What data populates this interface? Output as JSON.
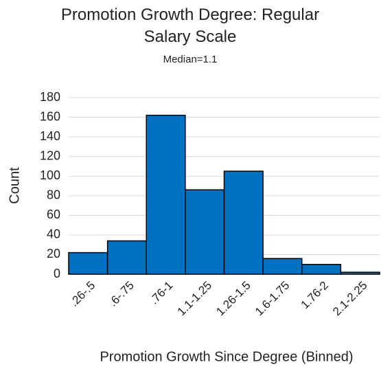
{
  "chart_data": {
    "type": "bar",
    "title": "Promotion Growth Degree: Regular Salary Scale",
    "subtitle": "Median=1.1",
    "x_label": "Promotion Growth Since Degree (Binned)",
    "y_label": "Count",
    "categories": [
      ".26-.5",
      ".6-.75",
      ".76-1",
      "1.1-1.25",
      "1.26-1.5",
      "1.6-1.75",
      "1.76-2",
      "2.1-2.25"
    ],
    "values": [
      22,
      34,
      162,
      86,
      105,
      16,
      10,
      2
    ],
    "color": "#0070c0",
    "ylim": [
      0,
      180
    ],
    "yticks": [
      0,
      20,
      40,
      60,
      80,
      100,
      120,
      140,
      160,
      180
    ],
    "grid": true
  }
}
